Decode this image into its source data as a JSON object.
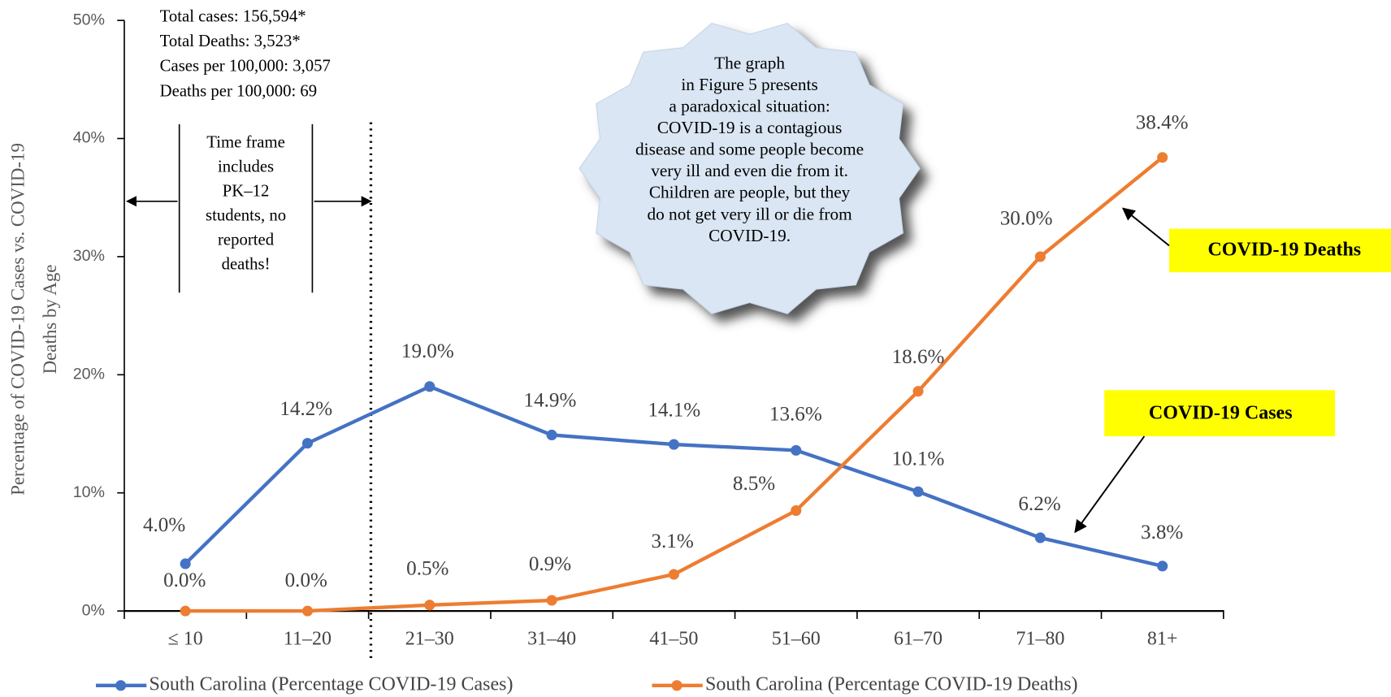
{
  "chart_data": {
    "type": "line",
    "ylabel": [
      "Percentage of COVID-19 Cases vs. COVID-19",
      "Deaths by Age"
    ],
    "categories": [
      "≤ 10",
      "11–20",
      "21–30",
      "31–40",
      "41–50",
      "51–60",
      "61–70",
      "71–80",
      "81+"
    ],
    "series": [
      {
        "name": "South Carolina (Percentage COVID-19 Cases)",
        "color": "#4472c4",
        "values": [
          4.0,
          14.2,
          19.0,
          14.9,
          14.1,
          13.6,
          10.1,
          6.2,
          3.8
        ],
        "value_labels": [
          "4.0%",
          "14.2%",
          "19.0%",
          "14.9%",
          "14.1%",
          "13.6%",
          "10.1%",
          "6.2%",
          "3.8%"
        ]
      },
      {
        "name": "South Carolina (Percentage COVID-19 Deaths)",
        "color": "#ed7d31",
        "values": [
          0.0,
          0.0,
          0.5,
          0.9,
          3.1,
          8.5,
          18.6,
          30.0,
          38.4
        ],
        "value_labels": [
          "0.0%",
          "0.0%",
          "0.5%",
          "0.9%",
          "3.1%",
          "8.5%",
          "18.6%",
          "30.0%",
          "38.4%"
        ]
      }
    ],
    "ylim": [
      0,
      50
    ],
    "yticks": [
      {
        "value": 0,
        "label": "0%"
      },
      {
        "value": 10,
        "label": "10%"
      },
      {
        "value": 20,
        "label": "20%"
      },
      {
        "value": 30,
        "label": "30%"
      },
      {
        "value": 40,
        "label": "40%"
      },
      {
        "value": 50,
        "label": "50%"
      }
    ],
    "legend": "bottom",
    "annotations": {
      "stats": [
        "Total cases: 156,594*",
        "Total Deaths: 3,523*",
        "Cases per 100,000: 3,057",
        "Deaths per 100,000: 69"
      ],
      "time_frame": [
        "Time frame",
        "includes",
        "PK–12",
        "students, no",
        "reported",
        "deaths!"
      ],
      "callout": [
        "The graph",
        "in Figure 5  presents",
        "a paradoxical situation:",
        "COVID-19 is a contagious",
        "disease and some people become",
        "very ill and even die from it.",
        "Children are people, but they",
        "do not get very ill or die from",
        "COVID-19."
      ],
      "deaths_label": "COVID-19 Deaths",
      "cases_label": "COVID-19 Cases"
    }
  }
}
